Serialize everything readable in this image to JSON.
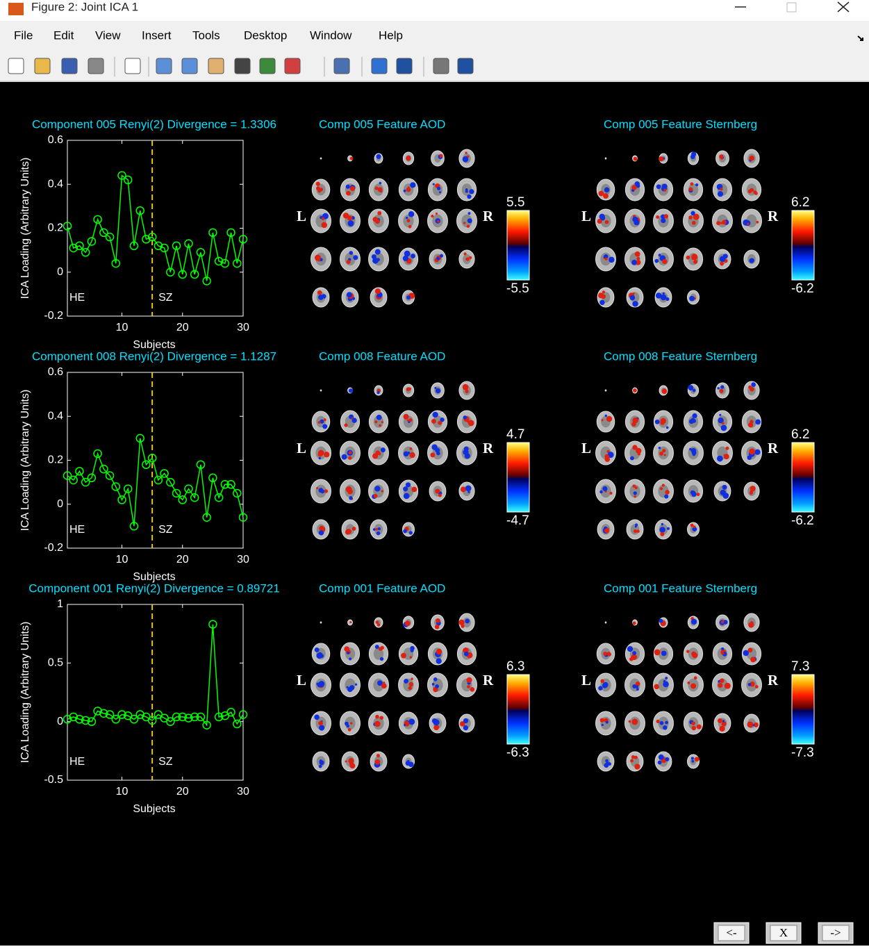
{
  "window": {
    "title": "Figure 2: Joint ICA 1"
  },
  "menu": [
    "File",
    "Edit",
    "View",
    "Insert",
    "Tools",
    "Desktop",
    "Window",
    "Help"
  ],
  "chart_data": [
    {
      "type": "line",
      "title": "Component 005 Renyi(2) Divergence = 1.3306",
      "xlabel": "Subjects",
      "ylabel": "ICA Loading (Arbitrary Units)",
      "x": [
        1,
        2,
        3,
        4,
        5,
        6,
        7,
        8,
        9,
        10,
        11,
        12,
        13,
        14,
        15,
        16,
        17,
        18,
        19,
        20,
        21,
        22,
        23,
        24,
        25,
        26,
        27,
        28,
        29,
        30
      ],
      "values": [
        0.21,
        0.11,
        0.12,
        0.09,
        0.14,
        0.24,
        0.18,
        0.16,
        0.04,
        0.44,
        0.42,
        0.12,
        0.28,
        0.15,
        0.16,
        0.12,
        0.11,
        0.0,
        0.12,
        -0.01,
        0.13,
        -0.01,
        0.09,
        -0.04,
        0.18,
        0.05,
        0.04,
        0.18,
        0.04,
        0.15
      ],
      "color": "#00ff00",
      "xlim": [
        1,
        30
      ],
      "xticks": [
        10,
        20,
        30
      ],
      "ylim": [
        -0.2,
        0.6
      ],
      "yticks": [
        -0.2,
        0,
        0.2,
        0.4,
        0.6
      ],
      "divider_x": 15,
      "divider_color": "#e6c229",
      "annotations": [
        "HE",
        "SZ"
      ]
    },
    {
      "type": "line",
      "title": "Component 008 Renyi(2) Divergence = 1.1287",
      "xlabel": "Subjects",
      "ylabel": "ICA Loading (Arbitrary Units)",
      "x": [
        1,
        2,
        3,
        4,
        5,
        6,
        7,
        8,
        9,
        10,
        11,
        12,
        13,
        14,
        15,
        16,
        17,
        18,
        19,
        20,
        21,
        22,
        23,
        24,
        25,
        26,
        27,
        28,
        29,
        30
      ],
      "values": [
        0.13,
        0.11,
        0.15,
        0.1,
        0.12,
        0.23,
        0.16,
        0.13,
        0.08,
        0.02,
        0.07,
        -0.1,
        0.3,
        0.18,
        0.21,
        0.11,
        0.14,
        0.1,
        0.05,
        0.02,
        0.07,
        0.03,
        0.18,
        -0.06,
        0.12,
        0.03,
        0.09,
        0.09,
        0.05,
        -0.06
      ],
      "color": "#00ff00",
      "xlim": [
        1,
        30
      ],
      "xticks": [
        10,
        20,
        30
      ],
      "ylim": [
        -0.2,
        0.6
      ],
      "yticks": [
        -0.2,
        0,
        0.2,
        0.4,
        0.6
      ],
      "divider_x": 15,
      "divider_color": "#e6c229",
      "annotations": [
        "HE",
        "SZ"
      ]
    },
    {
      "type": "line",
      "title": "Component 001 Renyi(2) Divergence = 0.89721",
      "xlabel": "Subjects",
      "ylabel": "ICA Loading (Arbitrary Units)",
      "x": [
        1,
        2,
        3,
        4,
        5,
        6,
        7,
        8,
        9,
        10,
        11,
        12,
        13,
        14,
        15,
        16,
        17,
        18,
        19,
        20,
        21,
        22,
        23,
        24,
        25,
        26,
        27,
        28,
        29,
        30
      ],
      "values": [
        0.02,
        0.04,
        0.02,
        0.01,
        0.0,
        0.09,
        0.07,
        0.06,
        0.02,
        0.06,
        0.05,
        0.02,
        0.06,
        0.04,
        0.01,
        0.06,
        0.03,
        0.0,
        0.04,
        0.04,
        0.03,
        0.04,
        0.04,
        -0.03,
        0.83,
        0.04,
        0.05,
        0.08,
        -0.02,
        0.06
      ],
      "color": "#00ff00",
      "xlim": [
        1,
        30
      ],
      "xticks": [
        10,
        20,
        30
      ],
      "ylim": [
        -0.5,
        1
      ],
      "yticks": [
        -0.5,
        0,
        0.5,
        1
      ],
      "divider_x": 15,
      "divider_color": "#e6c229",
      "annotations": [
        "HE",
        "SZ"
      ]
    }
  ],
  "panels": [
    [
      {
        "title": "Comp 005 Feature AOD",
        "left": "L",
        "right": "R",
        "max": 5.5,
        "min": -5.5
      },
      {
        "title": "Comp 005 Feature Sternberg",
        "left": "L",
        "right": "R",
        "max": 6.2,
        "min": -6.2
      }
    ],
    [
      {
        "title": "Comp 008 Feature AOD",
        "left": "L",
        "right": "R",
        "max": 4.7,
        "min": -4.7
      },
      {
        "title": "Comp 008 Feature Sternberg",
        "left": "L",
        "right": "R",
        "max": 6.2,
        "min": -6.2
      }
    ],
    [
      {
        "title": "Comp 001 Feature AOD",
        "left": "L",
        "right": "R",
        "max": 6.3,
        "min": -6.3
      },
      {
        "title": "Comp 001 Feature Sternberg",
        "left": "L",
        "right": "R",
        "max": 7.3,
        "min": -7.3
      }
    ]
  ],
  "buttons": [
    "<-",
    "X",
    "->"
  ]
}
